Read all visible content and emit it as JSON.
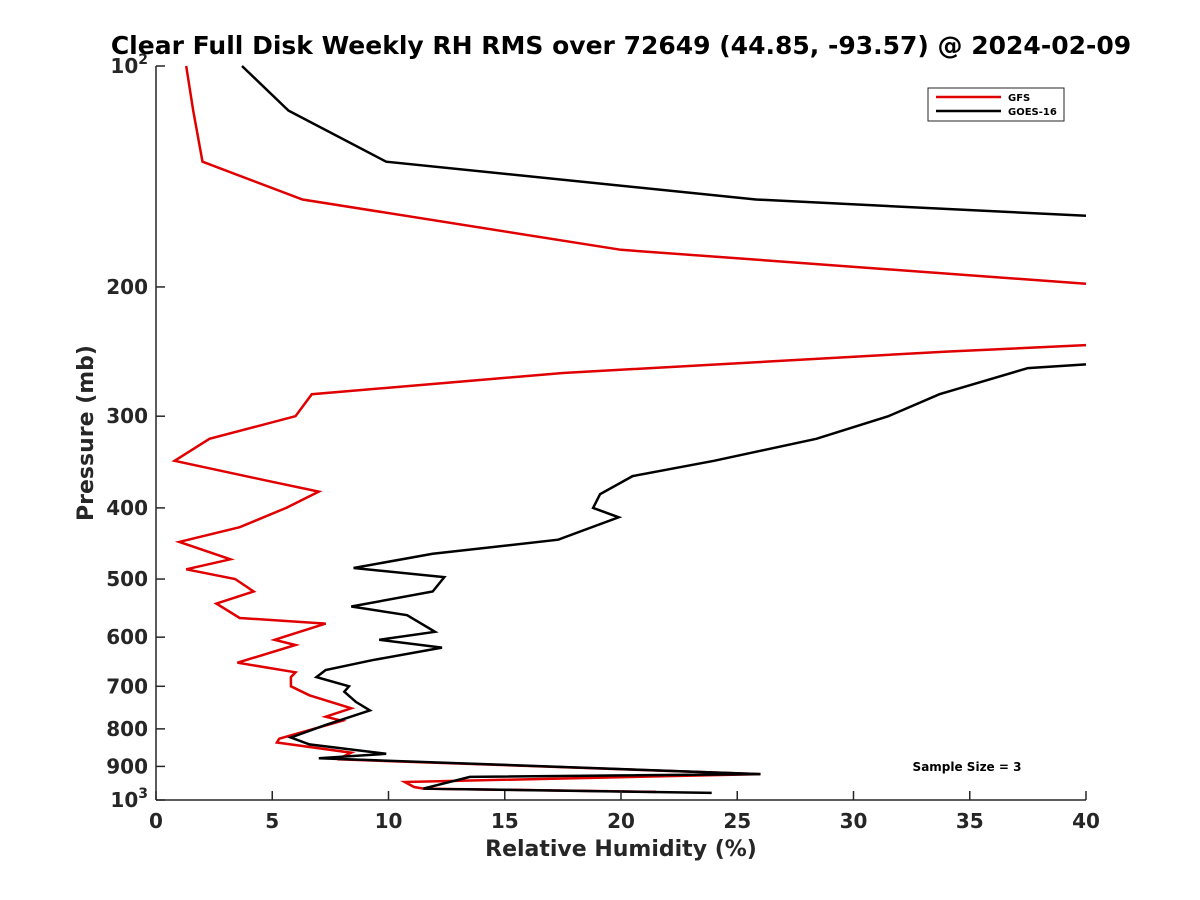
{
  "chart_data": {
    "type": "line",
    "title": "Clear Full Disk Weekly RH RMS over 72649 (44.85, -93.57) @ 2024-02-09",
    "xlabel": "Relative Humidity (%)",
    "ylabel": "Pressure (mb)",
    "xlim": [
      0,
      40
    ],
    "ylim": [
      100,
      1000
    ],
    "y_scale": "log",
    "y_reversed": true,
    "x_ticks": [
      0,
      5,
      10,
      15,
      20,
      25,
      30,
      35,
      40
    ],
    "x_tick_labels": [
      "0",
      "5",
      "10",
      "15",
      "20",
      "25",
      "30",
      "35",
      "40"
    ],
    "y_ticks": [
      100,
      200,
      300,
      400,
      500,
      600,
      700,
      800,
      900,
      1000
    ],
    "y_tick_labels": [
      {
        "base": "10",
        "sup": "2"
      },
      {
        "base": "200",
        "sup": ""
      },
      {
        "base": "300",
        "sup": ""
      },
      {
        "base": "400",
        "sup": ""
      },
      {
        "base": "500",
        "sup": ""
      },
      {
        "base": "600",
        "sup": ""
      },
      {
        "base": "700",
        "sup": ""
      },
      {
        "base": "800",
        "sup": ""
      },
      {
        "base": "900",
        "sup": ""
      },
      {
        "base": "10",
        "sup": "3"
      }
    ],
    "grid": false,
    "legend_position": "top-right",
    "annotation": "Sample Size = 3",
    "series": [
      {
        "name": "GFS",
        "color": "#e00000",
        "points": [
          [
            1.3,
            100
          ],
          [
            1.6,
            115
          ],
          [
            2.0,
            135
          ],
          [
            6.3,
            152
          ],
          [
            20.0,
            178
          ],
          [
            40.0,
            198
          ],
          [
            null,
            null
          ],
          [
            40.0,
            240
          ],
          [
            34.0,
            245
          ],
          [
            17.5,
            262
          ],
          [
            6.7,
            280
          ],
          [
            6.0,
            300
          ],
          [
            2.3,
            322
          ],
          [
            0.8,
            345
          ],
          [
            4.9,
            368
          ],
          [
            7.0,
            380
          ],
          [
            5.6,
            400
          ],
          [
            3.6,
            425
          ],
          [
            1.0,
            445
          ],
          [
            3.2,
            470
          ],
          [
            1.3,
            485
          ],
          [
            3.4,
            500
          ],
          [
            4.2,
            520
          ],
          [
            2.6,
            540
          ],
          [
            3.6,
            565
          ],
          [
            7.3,
            575
          ],
          [
            5.1,
            605
          ],
          [
            6.0,
            615
          ],
          [
            3.5,
            650
          ],
          [
            6.0,
            670
          ],
          [
            5.8,
            680
          ],
          [
            5.8,
            700
          ],
          [
            6.6,
            720
          ],
          [
            8.4,
            750
          ],
          [
            7.3,
            770
          ],
          [
            8.0,
            780
          ],
          [
            5.3,
            825
          ],
          [
            5.2,
            835
          ],
          [
            8.4,
            862
          ],
          [
            7.8,
            880
          ],
          [
            26.0,
            922
          ],
          [
            10.7,
            945
          ],
          [
            11.1,
            960
          ],
          [
            11.5,
            965
          ],
          [
            21.5,
            975
          ]
        ]
      },
      {
        "name": "GOES-16",
        "color": "#000000",
        "points": [
          [
            3.7,
            100
          ],
          [
            5.7,
            115
          ],
          [
            9.9,
            135
          ],
          [
            25.8,
            152
          ],
          [
            40.0,
            160
          ],
          [
            null,
            null
          ],
          [
            40.0,
            255
          ],
          [
            37.5,
            258
          ],
          [
            33.7,
            280
          ],
          [
            31.5,
            300
          ],
          [
            28.4,
            322
          ],
          [
            24.0,
            345
          ],
          [
            20.5,
            362
          ],
          [
            19.1,
            383
          ],
          [
            18.8,
            400
          ],
          [
            19.9,
            412
          ],
          [
            17.3,
            442
          ],
          [
            11.9,
            462
          ],
          [
            8.5,
            483
          ],
          [
            12.4,
            497
          ],
          [
            11.9,
            520
          ],
          [
            8.4,
            545
          ],
          [
            10.8,
            560
          ],
          [
            12.0,
            590
          ],
          [
            9.6,
            605
          ],
          [
            12.3,
            620
          ],
          [
            9.3,
            645
          ],
          [
            7.3,
            665
          ],
          [
            6.9,
            680
          ],
          [
            8.3,
            700
          ],
          [
            8.1,
            712
          ],
          [
            8.6,
            735
          ],
          [
            9.2,
            755
          ],
          [
            7.3,
            790
          ],
          [
            5.8,
            822
          ],
          [
            6.6,
            840
          ],
          [
            9.9,
            865
          ],
          [
            7.0,
            877
          ],
          [
            26.0,
            922
          ],
          [
            13.5,
            930
          ],
          [
            11.5,
            965
          ],
          [
            23.9,
            978
          ]
        ]
      }
    ]
  }
}
